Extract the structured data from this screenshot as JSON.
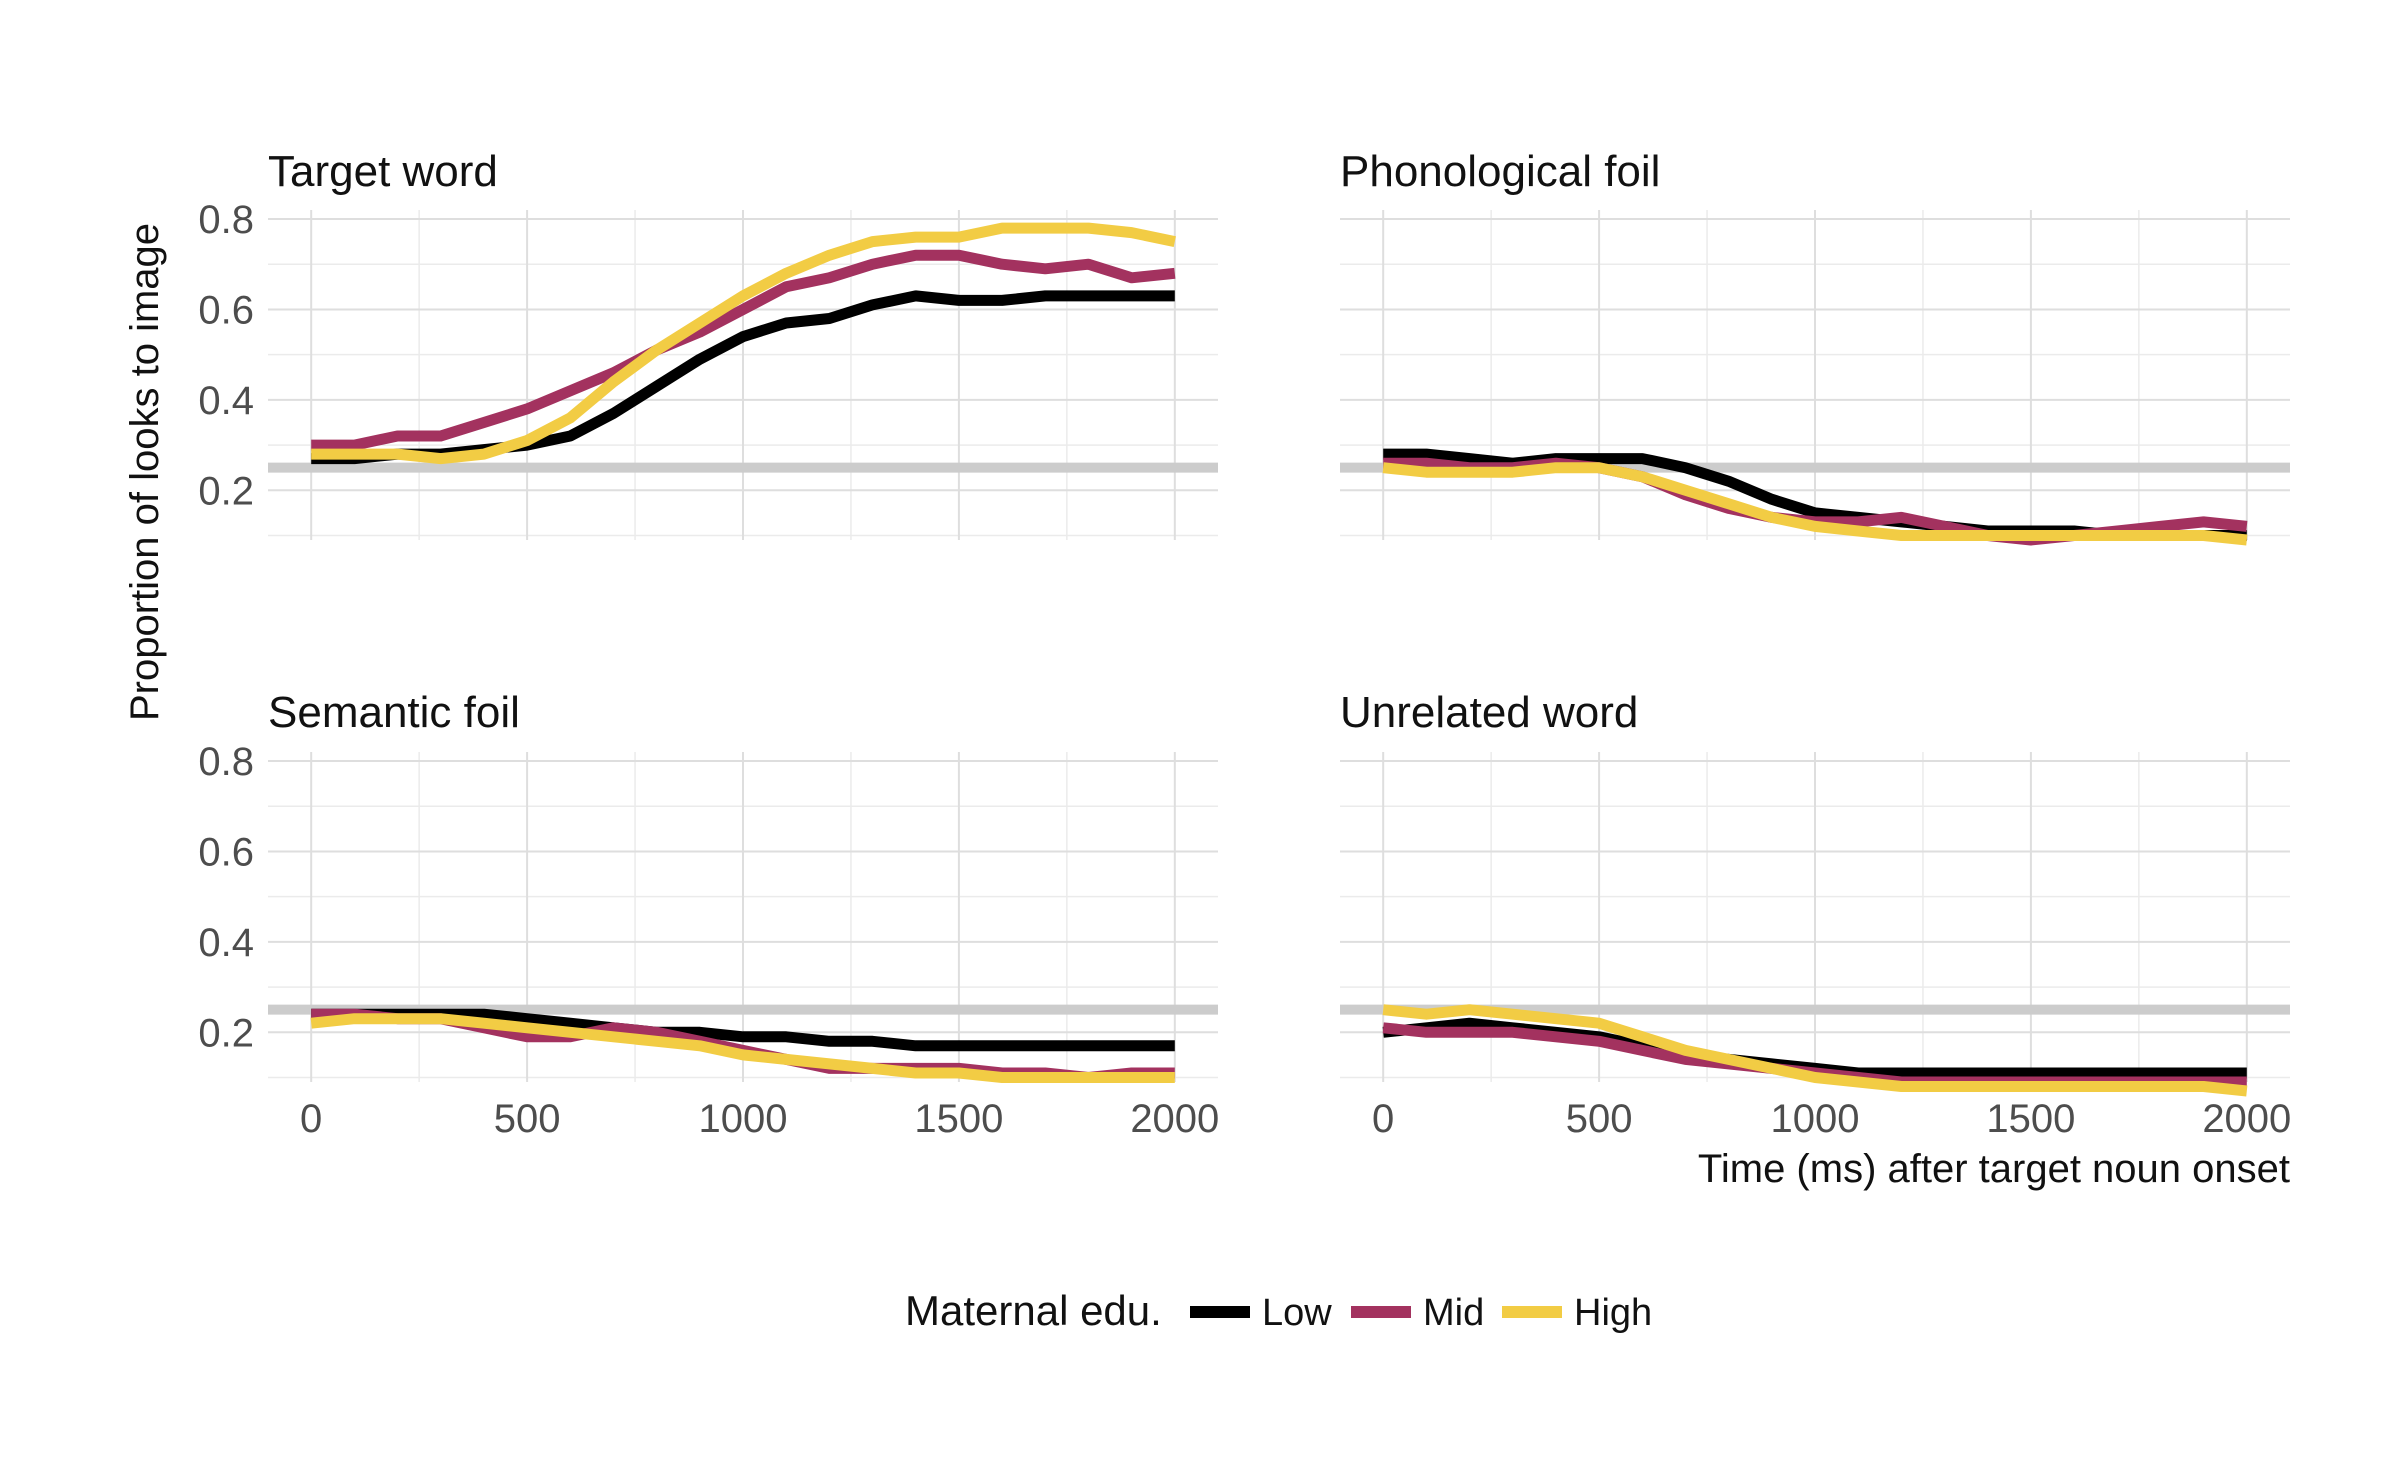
{
  "chart_data": {
    "type": "line",
    "xlabel": "Time (ms) after target noun onset",
    "ylabel": "Proportion of looks to image",
    "xlim": [
      -100,
      2100
    ],
    "ylim": [
      0.09,
      0.82
    ],
    "xticks": [
      0,
      500,
      1000,
      1500,
      2000
    ],
    "yticks": [
      0.2,
      0.4,
      0.6,
      0.8
    ],
    "y_tick_labels_on": "left column",
    "x_tick_labels_on": "bottom row",
    "grid": true,
    "reference_line": {
      "y": 0.25,
      "color": "#cccccc"
    },
    "legend": {
      "title": "Maternal edu.",
      "position": "bottom",
      "entries": [
        {
          "label": "Low",
          "color": "#000000"
        },
        {
          "label": "Mid",
          "color": "#a3325f"
        },
        {
          "label": "High",
          "color": "#f2cc44"
        }
      ]
    },
    "panels": [
      {
        "title": "Target word",
        "series": [
          {
            "name": "Low",
            "color": "#000000",
            "x": [
              0,
              100,
              200,
              300,
              400,
              500,
              600,
              700,
              800,
              900,
              1000,
              1100,
              1200,
              1300,
              1400,
              1500,
              1600,
              1700,
              1800,
              1900,
              2000
            ],
            "y": [
              0.27,
              0.27,
              0.28,
              0.28,
              0.29,
              0.3,
              0.32,
              0.37,
              0.43,
              0.49,
              0.54,
              0.57,
              0.58,
              0.61,
              0.63,
              0.62,
              0.62,
              0.63,
              0.63,
              0.63,
              0.63
            ]
          },
          {
            "name": "Mid",
            "color": "#a3325f",
            "x": [
              0,
              100,
              200,
              300,
              400,
              500,
              600,
              700,
              800,
              900,
              1000,
              1100,
              1200,
              1300,
              1400,
              1500,
              1600,
              1700,
              1800,
              1900,
              2000
            ],
            "y": [
              0.3,
              0.3,
              0.32,
              0.32,
              0.35,
              0.38,
              0.42,
              0.46,
              0.51,
              0.55,
              0.6,
              0.65,
              0.67,
              0.7,
              0.72,
              0.72,
              0.7,
              0.69,
              0.7,
              0.67,
              0.68
            ]
          },
          {
            "name": "High",
            "color": "#f2cc44",
            "x": [
              0,
              100,
              200,
              300,
              400,
              500,
              600,
              700,
              800,
              900,
              1000,
              1100,
              1200,
              1300,
              1400,
              1500,
              1600,
              1700,
              1800,
              1900,
              2000
            ],
            "y": [
              0.28,
              0.28,
              0.28,
              0.27,
              0.28,
              0.31,
              0.36,
              0.44,
              0.51,
              0.57,
              0.63,
              0.68,
              0.72,
              0.75,
              0.76,
              0.76,
              0.78,
              0.78,
              0.78,
              0.77,
              0.75
            ]
          }
        ]
      },
      {
        "title": "Phonological foil",
        "series": [
          {
            "name": "Low",
            "color": "#000000",
            "x": [
              0,
              100,
              200,
              300,
              400,
              500,
              600,
              700,
              800,
              900,
              1000,
              1100,
              1200,
              1300,
              1400,
              1500,
              1600,
              1700,
              1800,
              1900,
              2000
            ],
            "y": [
              0.28,
              0.28,
              0.27,
              0.26,
              0.27,
              0.27,
              0.27,
              0.25,
              0.22,
              0.18,
              0.15,
              0.14,
              0.13,
              0.12,
              0.11,
              0.11,
              0.11,
              0.1,
              0.1,
              0.1,
              0.1
            ]
          },
          {
            "name": "Mid",
            "color": "#a3325f",
            "x": [
              0,
              100,
              200,
              300,
              400,
              500,
              600,
              700,
              800,
              900,
              1000,
              1100,
              1200,
              1300,
              1400,
              1500,
              1600,
              1700,
              1800,
              1900,
              2000
            ],
            "y": [
              0.26,
              0.26,
              0.25,
              0.25,
              0.26,
              0.25,
              0.23,
              0.19,
              0.16,
              0.14,
              0.13,
              0.13,
              0.14,
              0.12,
              0.1,
              0.09,
              0.1,
              0.11,
              0.12,
              0.13,
              0.12
            ]
          },
          {
            "name": "High",
            "color": "#f2cc44",
            "x": [
              0,
              100,
              200,
              300,
              400,
              500,
              600,
              700,
              800,
              900,
              1000,
              1100,
              1200,
              1300,
              1400,
              1500,
              1600,
              1700,
              1800,
              1900,
              2000
            ],
            "y": [
              0.25,
              0.24,
              0.24,
              0.24,
              0.25,
              0.25,
              0.23,
              0.2,
              0.17,
              0.14,
              0.12,
              0.11,
              0.1,
              0.1,
              0.1,
              0.1,
              0.1,
              0.1,
              0.1,
              0.1,
              0.09
            ]
          }
        ]
      },
      {
        "title": "Semantic foil",
        "series": [
          {
            "name": "Low",
            "color": "#000000",
            "x": [
              0,
              100,
              200,
              300,
              400,
              500,
              600,
              700,
              800,
              900,
              1000,
              1100,
              1200,
              1300,
              1400,
              1500,
              1600,
              1700,
              1800,
              1900,
              2000
            ],
            "y": [
              0.24,
              0.24,
              0.24,
              0.24,
              0.24,
              0.23,
              0.22,
              0.21,
              0.2,
              0.2,
              0.19,
              0.19,
              0.18,
              0.18,
              0.17,
              0.17,
              0.17,
              0.17,
              0.17,
              0.17,
              0.17
            ]
          },
          {
            "name": "Mid",
            "color": "#a3325f",
            "x": [
              0,
              100,
              200,
              300,
              400,
              500,
              600,
              700,
              800,
              900,
              1000,
              1100,
              1200,
              1300,
              1400,
              1500,
              1600,
              1700,
              1800,
              1900,
              2000
            ],
            "y": [
              0.24,
              0.24,
              0.23,
              0.23,
              0.21,
              0.19,
              0.19,
              0.21,
              0.2,
              0.18,
              0.16,
              0.14,
              0.12,
              0.12,
              0.12,
              0.12,
              0.11,
              0.11,
              0.1,
              0.11,
              0.11
            ]
          },
          {
            "name": "High",
            "color": "#f2cc44",
            "x": [
              0,
              100,
              200,
              300,
              400,
              500,
              600,
              700,
              800,
              900,
              1000,
              1100,
              1200,
              1300,
              1400,
              1500,
              1600,
              1700,
              1800,
              1900,
              2000
            ],
            "y": [
              0.22,
              0.23,
              0.23,
              0.23,
              0.22,
              0.21,
              0.2,
              0.19,
              0.18,
              0.17,
              0.15,
              0.14,
              0.13,
              0.12,
              0.11,
              0.11,
              0.1,
              0.1,
              0.1,
              0.1,
              0.1
            ]
          }
        ]
      },
      {
        "title": "Unrelated word",
        "series": [
          {
            "name": "Low",
            "color": "#000000",
            "x": [
              0,
              100,
              200,
              300,
              400,
              500,
              600,
              700,
              800,
              900,
              1000,
              1100,
              1200,
              1300,
              1400,
              1500,
              1600,
              1700,
              1800,
              1900,
              2000
            ],
            "y": [
              0.2,
              0.21,
              0.22,
              0.21,
              0.2,
              0.19,
              0.17,
              0.15,
              0.14,
              0.13,
              0.12,
              0.11,
              0.11,
              0.11,
              0.11,
              0.11,
              0.11,
              0.11,
              0.11,
              0.11,
              0.11
            ]
          },
          {
            "name": "Mid",
            "color": "#a3325f",
            "x": [
              0,
              100,
              200,
              300,
              400,
              500,
              600,
              700,
              800,
              900,
              1000,
              1100,
              1200,
              1300,
              1400,
              1500,
              1600,
              1700,
              1800,
              1900,
              2000
            ],
            "y": [
              0.21,
              0.2,
              0.2,
              0.2,
              0.19,
              0.18,
              0.16,
              0.14,
              0.13,
              0.12,
              0.11,
              0.1,
              0.09,
              0.09,
              0.09,
              0.09,
              0.09,
              0.09,
              0.09,
              0.09,
              0.09
            ]
          },
          {
            "name": "High",
            "color": "#f2cc44",
            "x": [
              0,
              100,
              200,
              300,
              400,
              500,
              600,
              700,
              800,
              900,
              1000,
              1100,
              1200,
              1300,
              1400,
              1500,
              1600,
              1700,
              1800,
              1900,
              2000
            ],
            "y": [
              0.25,
              0.24,
              0.25,
              0.24,
              0.23,
              0.22,
              0.19,
              0.16,
              0.14,
              0.12,
              0.1,
              0.09,
              0.08,
              0.08,
              0.08,
              0.08,
              0.08,
              0.08,
              0.08,
              0.08,
              0.07
            ]
          }
        ]
      }
    ]
  }
}
